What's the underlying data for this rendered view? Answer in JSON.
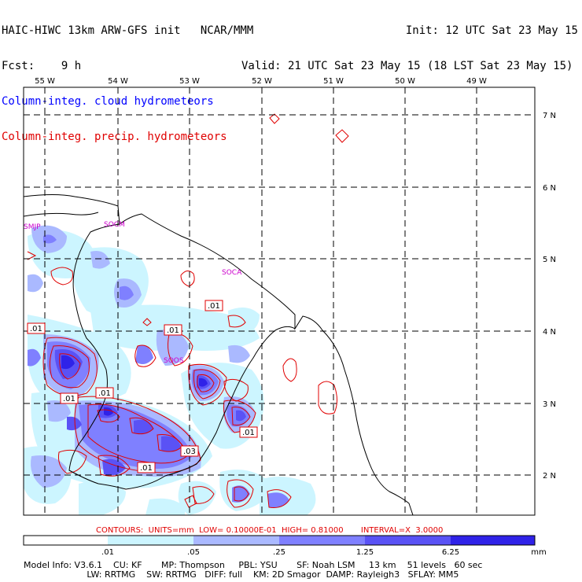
{
  "header": {
    "model_line": "HAIC-HIWC 13km ARW-GFS init   NCAR/MMM",
    "fcst_line": "Fcst:    9 h",
    "init_line": "Init: 12 UTC Sat 23 May 15",
    "valid_line": "Valid: 21 UTC Sat 23 May 15 (18 LST Sat 23 May 15)",
    "cloud_legend": "Column-integ. cloud hydrometeors",
    "precip_legend": "Column-integ. precip. hydrometeors"
  },
  "colors": {
    "cloud": "#0000ff",
    "precip": "#e00000",
    "station": "#cc00cc",
    "fill_levels": [
      "#ccf5ff",
      "#aab9ff",
      "#7f80ff",
      "#5a52f5",
      "#2f22e8"
    ]
  },
  "map": {
    "lon_labels": [
      "55 W",
      "54 W",
      "53 W",
      "52 W",
      "51 W",
      "50 W",
      "49 W"
    ],
    "lat_labels": [
      "7 N",
      "6 N",
      "5 N",
      "4 N",
      "3 N",
      "2 N"
    ],
    "stations": [
      "SMJP",
      "SOCM",
      "SOCA",
      "SOOS"
    ],
    "contour_labels": [
      ".01",
      ".01",
      ".01",
      ".01",
      ".01",
      ".01",
      ".01",
      ".03",
      ".01"
    ]
  },
  "contours_info": "CONTOURS:  UNITS=mm  LOW= 0.10000E-01  HIGH= 0.81000       INTERVAL=X  3.0000",
  "colorbar": {
    "ticks": [
      ".01",
      ".05",
      ".25",
      "1.25",
      "6.25"
    ],
    "unit": "mm"
  },
  "model_info": {
    "line1": "Model Info: V3.6.1    CU: KF       MP: Thompson     PBL: YSU       SF: Noah LSM     13 km    51 levels   60 sec",
    "line2": "                       LW: RRTMG    SW: RRTMG   DIFF: full    KM: 2D Smagor  DAMP: Rayleigh3   SFLAY: MM5"
  }
}
